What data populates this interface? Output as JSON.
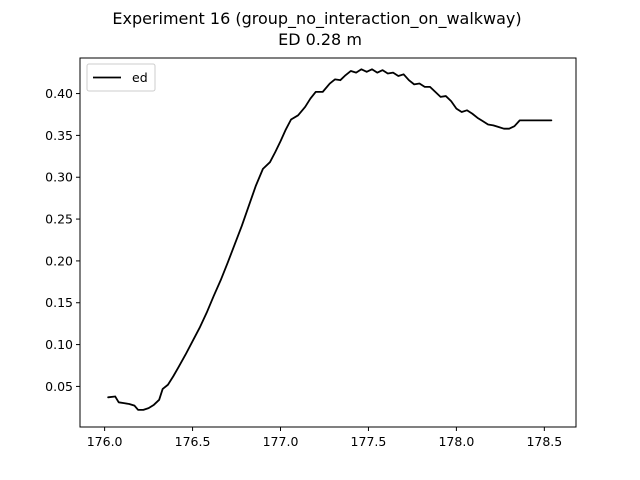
{
  "chart_data": {
    "type": "line",
    "title": "Experiment 16 (group_no_interaction_on_walkway)",
    "subtitle": "ED 0.28 m",
    "xlabel": "",
    "ylabel": "",
    "xlim": [
      175.86,
      178.68
    ],
    "ylim": [
      0.0015,
      0.4425
    ],
    "xticks": [
      176.0,
      176.5,
      177.0,
      177.5,
      178.0,
      178.5
    ],
    "xtick_labels": [
      "176.0",
      "176.5",
      "177.0",
      "177.5",
      "178.0",
      "178.5"
    ],
    "yticks": [
      0.05,
      0.1,
      0.15,
      0.2,
      0.25,
      0.3,
      0.35,
      0.4
    ],
    "ytick_labels": [
      "0.05",
      "0.10",
      "0.15",
      "0.20",
      "0.25",
      "0.30",
      "0.35",
      "0.40"
    ],
    "grid": false,
    "legend_position": "top-left",
    "series": [
      {
        "name": "ed",
        "color": "#000000",
        "x": [
          176.02,
          176.06,
          176.08,
          176.11,
          176.14,
          176.17,
          176.19,
          176.22,
          176.25,
          176.28,
          176.31,
          176.33,
          176.36,
          176.39,
          176.42,
          176.46,
          176.5,
          176.54,
          176.58,
          176.62,
          176.66,
          176.7,
          176.74,
          176.78,
          176.82,
          176.86,
          176.9,
          176.94,
          176.97,
          177.0,
          177.03,
          177.06,
          177.1,
          177.14,
          177.17,
          177.2,
          177.24,
          177.28,
          177.31,
          177.34,
          177.37,
          177.4,
          177.43,
          177.46,
          177.49,
          177.52,
          177.55,
          177.58,
          177.61,
          177.64,
          177.67,
          177.7,
          177.73,
          177.76,
          177.79,
          177.82,
          177.85,
          177.88,
          177.91,
          177.94,
          177.97,
          178.0,
          178.03,
          178.06,
          178.09,
          178.12,
          178.15,
          178.18,
          178.21,
          178.24,
          178.27,
          178.3,
          178.33,
          178.36,
          178.39,
          178.42,
          178.45,
          178.48,
          178.51,
          178.54
        ],
        "y": [
          0.037,
          0.038,
          0.031,
          0.03,
          0.029,
          0.027,
          0.022,
          0.022,
          0.024,
          0.028,
          0.034,
          0.047,
          0.052,
          0.062,
          0.073,
          0.088,
          0.104,
          0.12,
          0.138,
          0.158,
          0.177,
          0.198,
          0.22,
          0.242,
          0.266,
          0.29,
          0.31,
          0.318,
          0.33,
          0.343,
          0.357,
          0.369,
          0.374,
          0.384,
          0.394,
          0.402,
          0.402,
          0.412,
          0.417,
          0.416,
          0.422,
          0.427,
          0.425,
          0.429,
          0.426,
          0.429,
          0.425,
          0.428,
          0.424,
          0.425,
          0.421,
          0.423,
          0.416,
          0.411,
          0.412,
          0.408,
          0.408,
          0.402,
          0.396,
          0.397,
          0.391,
          0.382,
          0.378,
          0.38,
          0.376,
          0.371,
          0.367,
          0.363,
          0.362,
          0.36,
          0.358,
          0.358,
          0.361,
          0.368,
          0.368,
          0.368,
          0.368,
          0.368,
          0.368,
          0.368
        ]
      }
    ]
  }
}
